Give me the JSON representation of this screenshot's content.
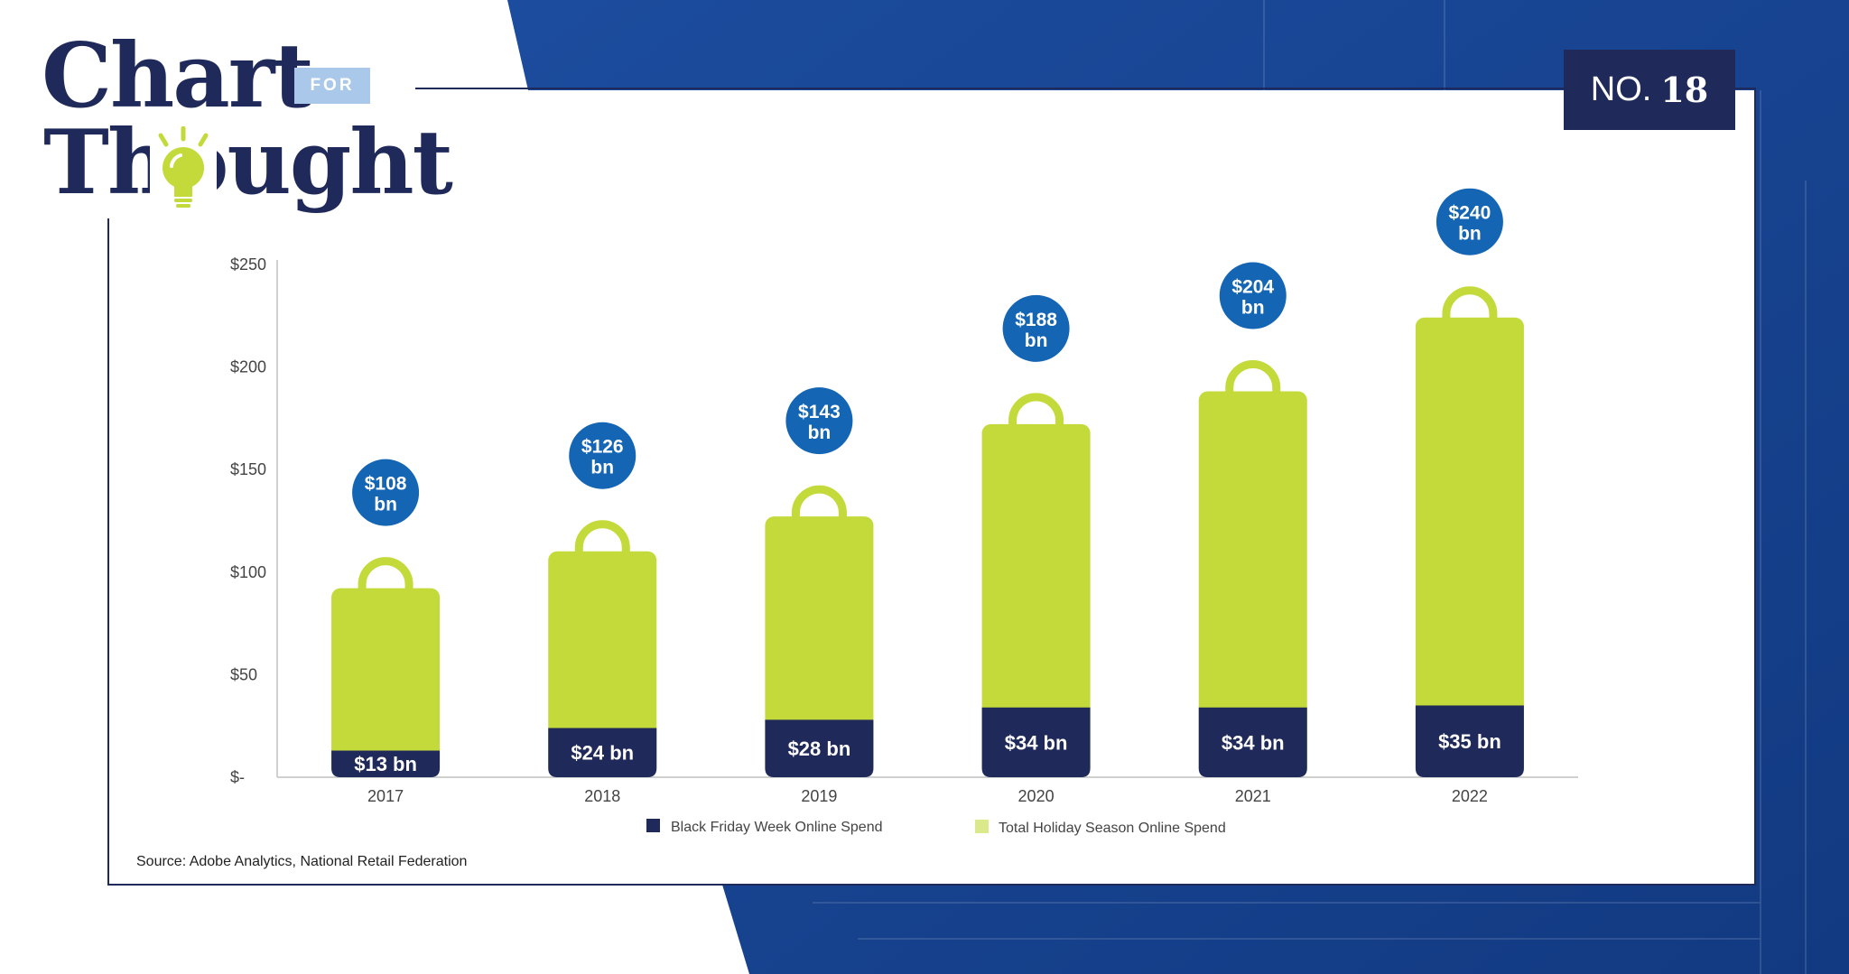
{
  "brand": {
    "logo_line1": "Chart",
    "logo_for": "FOR",
    "logo_line2": "Thought",
    "badge_prefix": "NO.",
    "badge_number": "18"
  },
  "colors": {
    "navy": "#1f2a5a",
    "lime": "#c4d93a",
    "bubble_blue": "#1565b5",
    "background_blue": "#1e4ea0"
  },
  "source": "Source: Adobe Analytics, National Retail Federation",
  "chart_data": {
    "type": "bar",
    "title": "",
    "xlabel": "",
    "ylabel": "",
    "categories": [
      "2017",
      "2018",
      "2019",
      "2020",
      "2021",
      "2022"
    ],
    "ylim": [
      0,
      250
    ],
    "yticks": [
      0,
      50,
      100,
      150,
      200,
      250
    ],
    "ytick_labels": [
      "$-",
      "$50",
      "$100",
      "$150",
      "$200",
      "$250"
    ],
    "legend_position": "bottom",
    "series": [
      {
        "name": "Black Friday Week Online Spend",
        "color": "#1f2a5a",
        "values": [
          13,
          24,
          28,
          34,
          34,
          35
        ],
        "labels": [
          "$13 bn",
          "$24 bn",
          "$28 bn",
          "$34 bn",
          "$34 bn",
          "$35 bn"
        ]
      },
      {
        "name": "Total Holiday Season Online Spend",
        "color": "#c4d93a",
        "values": [
          108,
          126,
          143,
          188,
          204,
          240
        ],
        "labels_top": [
          "$108",
          "$126",
          "$143",
          "$188",
          "$204",
          "$240"
        ],
        "labels_bottom": [
          "bn",
          "bn",
          "bn",
          "bn",
          "bn",
          "bn"
        ]
      }
    ]
  }
}
